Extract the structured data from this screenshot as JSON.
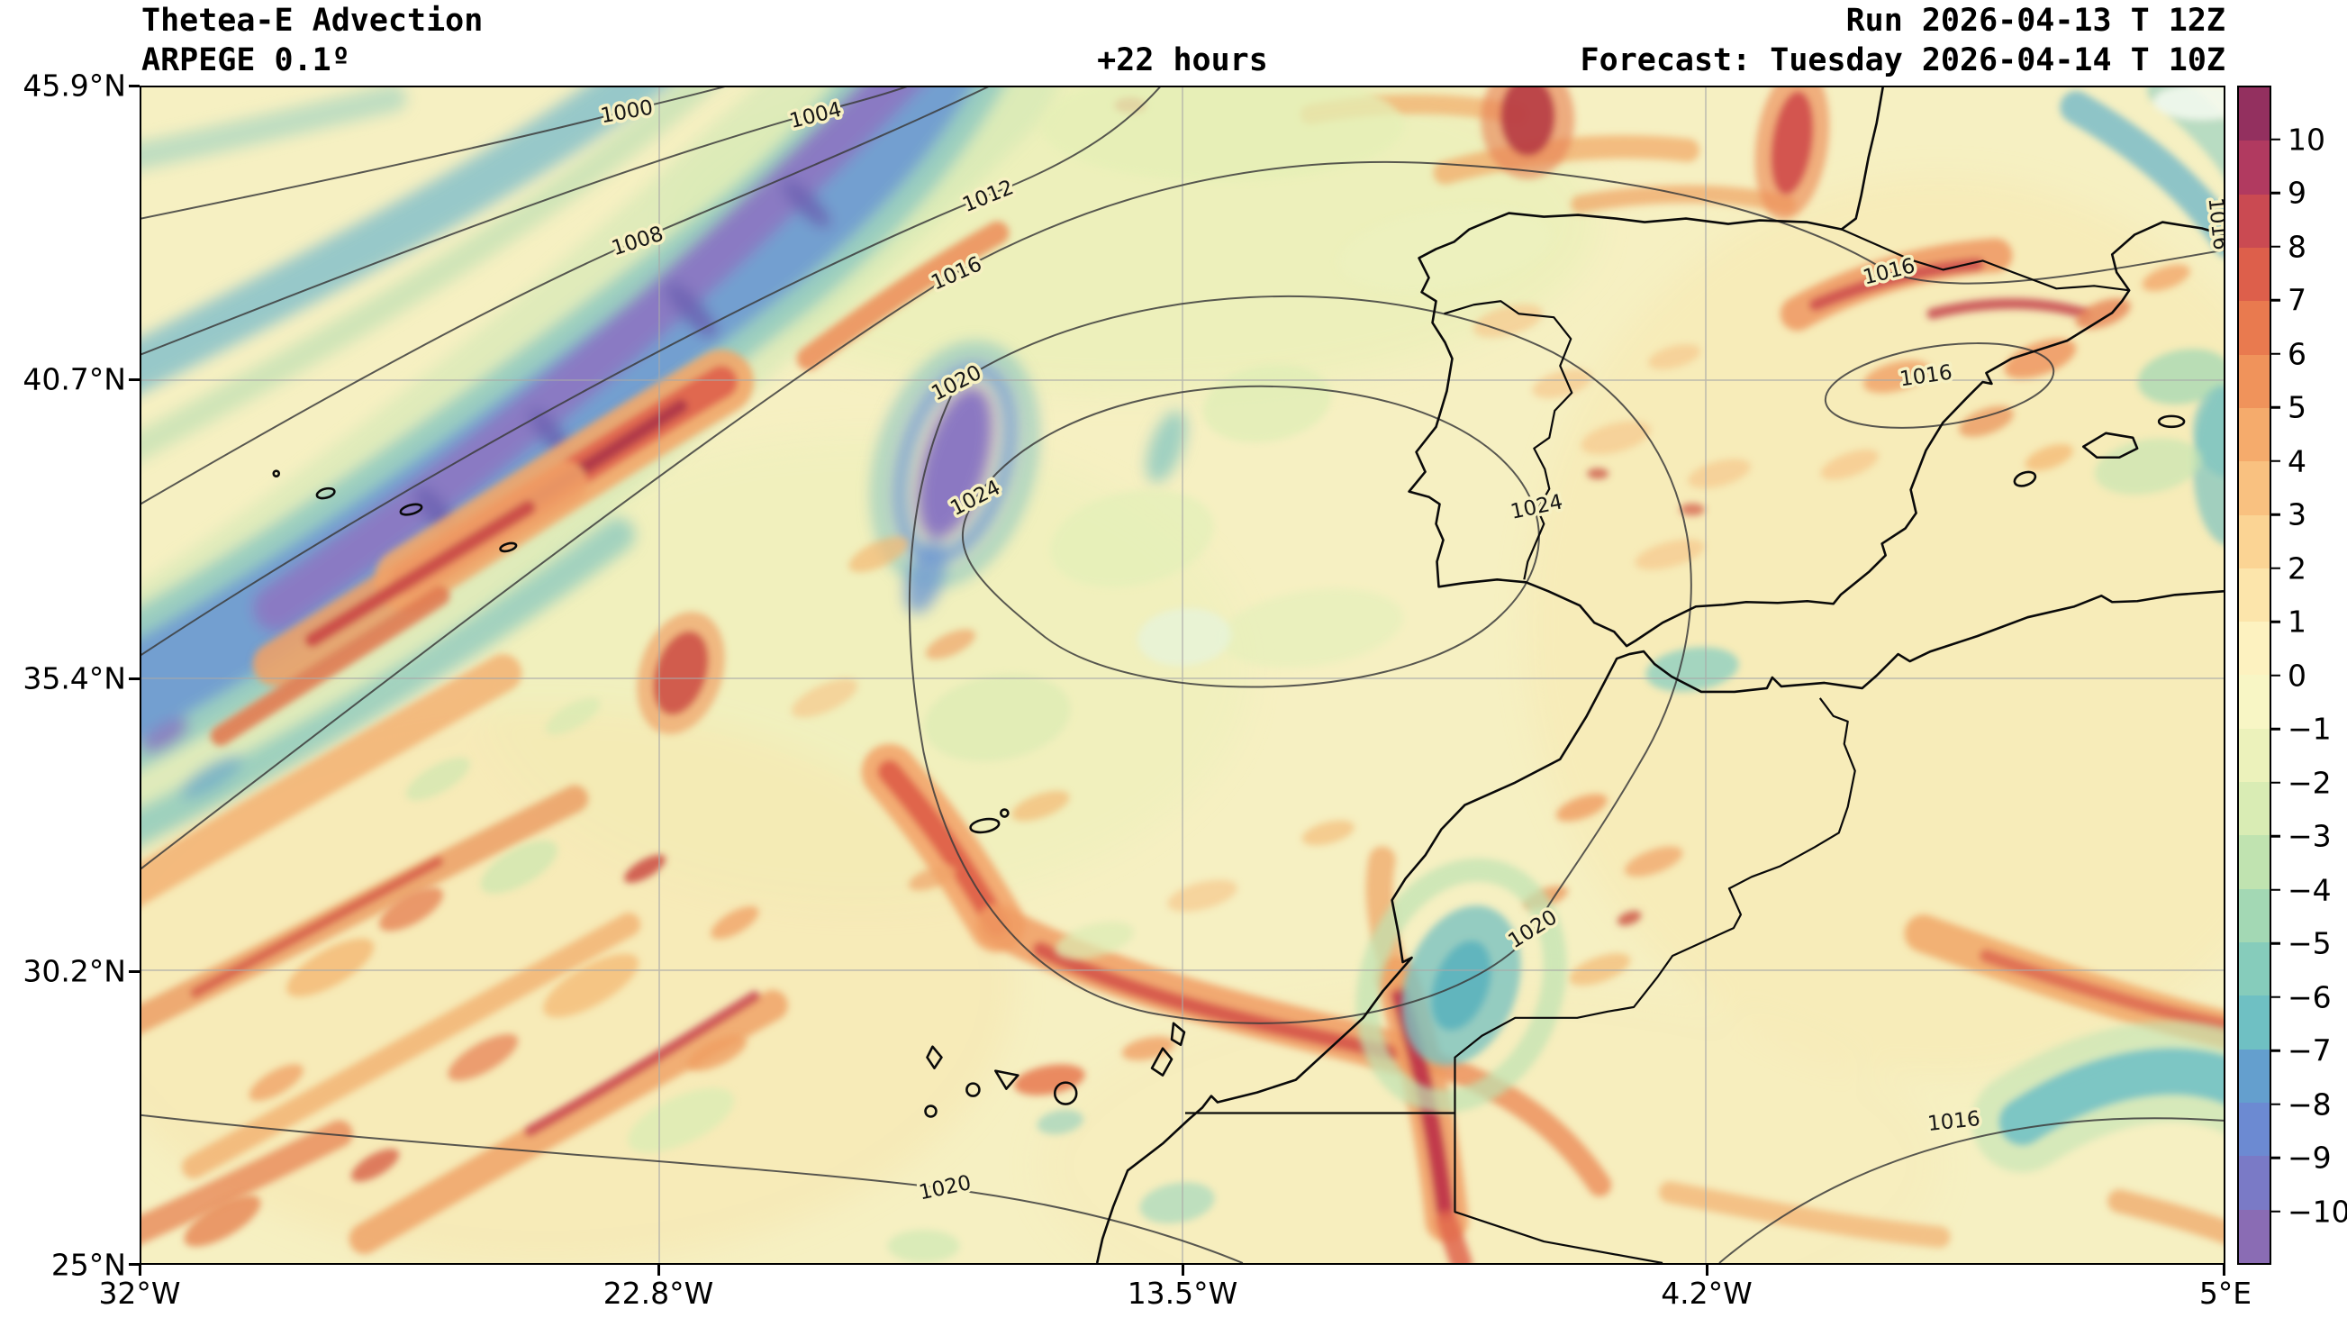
{
  "header": {
    "title": "Thetea-E Advection",
    "model": "ARPEGE 0.1º",
    "lead_time": "+22 hours",
    "run": "Run 2026-04-13 T 12Z",
    "forecast": "Forecast: Tuesday 2026-04-14 T 10Z"
  },
  "axes": {
    "lat": [
      "45.9°N",
      "40.7°N",
      "35.4°N",
      "30.2°N",
      "25°N"
    ],
    "lon": [
      "32°W",
      "22.8°W",
      "13.5°W",
      "4.2°W",
      "5°E"
    ]
  },
  "map_labels": {
    "isobars": [
      {
        "text": "1000"
      },
      {
        "text": "1004"
      },
      {
        "text": "1008"
      },
      {
        "text": "1012"
      },
      {
        "text": "1016"
      },
      {
        "text": "1020"
      },
      {
        "text": "1024"
      },
      {
        "text": "1024"
      },
      {
        "text": "1020"
      },
      {
        "text": "1020"
      },
      {
        "text": "1016"
      },
      {
        "text": "1016"
      },
      {
        "text": "1016"
      },
      {
        "text": "1016"
      }
    ]
  },
  "colorbar": {
    "tick_labels": [
      "10",
      "9",
      "8",
      "7",
      "6",
      "5",
      "4",
      "3",
      "2",
      "1",
      "0",
      "−1",
      "−2",
      "−3",
      "−4",
      "−5",
      "−6",
      "−7",
      "−8",
      "−9",
      "−10"
    ],
    "colors_top_to_bottom": [
      "#93305f",
      "#b13a60",
      "#ca4a52",
      "#dd5f4b",
      "#e97a4f",
      "#f0935b",
      "#f5ab6c",
      "#f9c180",
      "#fbd494",
      "#fce5ab",
      "#fdf2c0",
      "#f8f6c5",
      "#ecf2bb",
      "#d9ecb4",
      "#c0e3b0",
      "#a3d8b4",
      "#86ccbb",
      "#6fc0c3",
      "#649fce",
      "#6c8ad2",
      "#7a7ac6",
      "#8a6cb4"
    ]
  },
  "chart_data": {
    "type": "heatmap",
    "title": "Thetea-E Advection",
    "model": "ARPEGE 0.1º",
    "lead_time_hours": 22,
    "run": "2026-04-13 12Z",
    "valid": "Tuesday 2026-04-14 10Z",
    "x_axis_ticks": [
      "32°W",
      "22.8°W",
      "13.5°W",
      "4.2°W",
      "5°E"
    ],
    "y_axis_ticks": [
      "45.9°N",
      "40.7°N",
      "35.4°N",
      "30.2°N",
      "25°N"
    ],
    "colorbar_ticks": [
      10,
      9,
      8,
      7,
      6,
      5,
      4,
      3,
      2,
      1,
      0,
      -1,
      -2,
      -3,
      -4,
      -5,
      -6,
      -7,
      -8,
      -9,
      -10
    ],
    "colorbar_range": [
      -11,
      11
    ],
    "isobar_values_hpa": [
      1000,
      1004,
      1008,
      1012,
      1016,
      1020,
      1024
    ],
    "grid": true,
    "legend_position": "right-colorbar"
  }
}
